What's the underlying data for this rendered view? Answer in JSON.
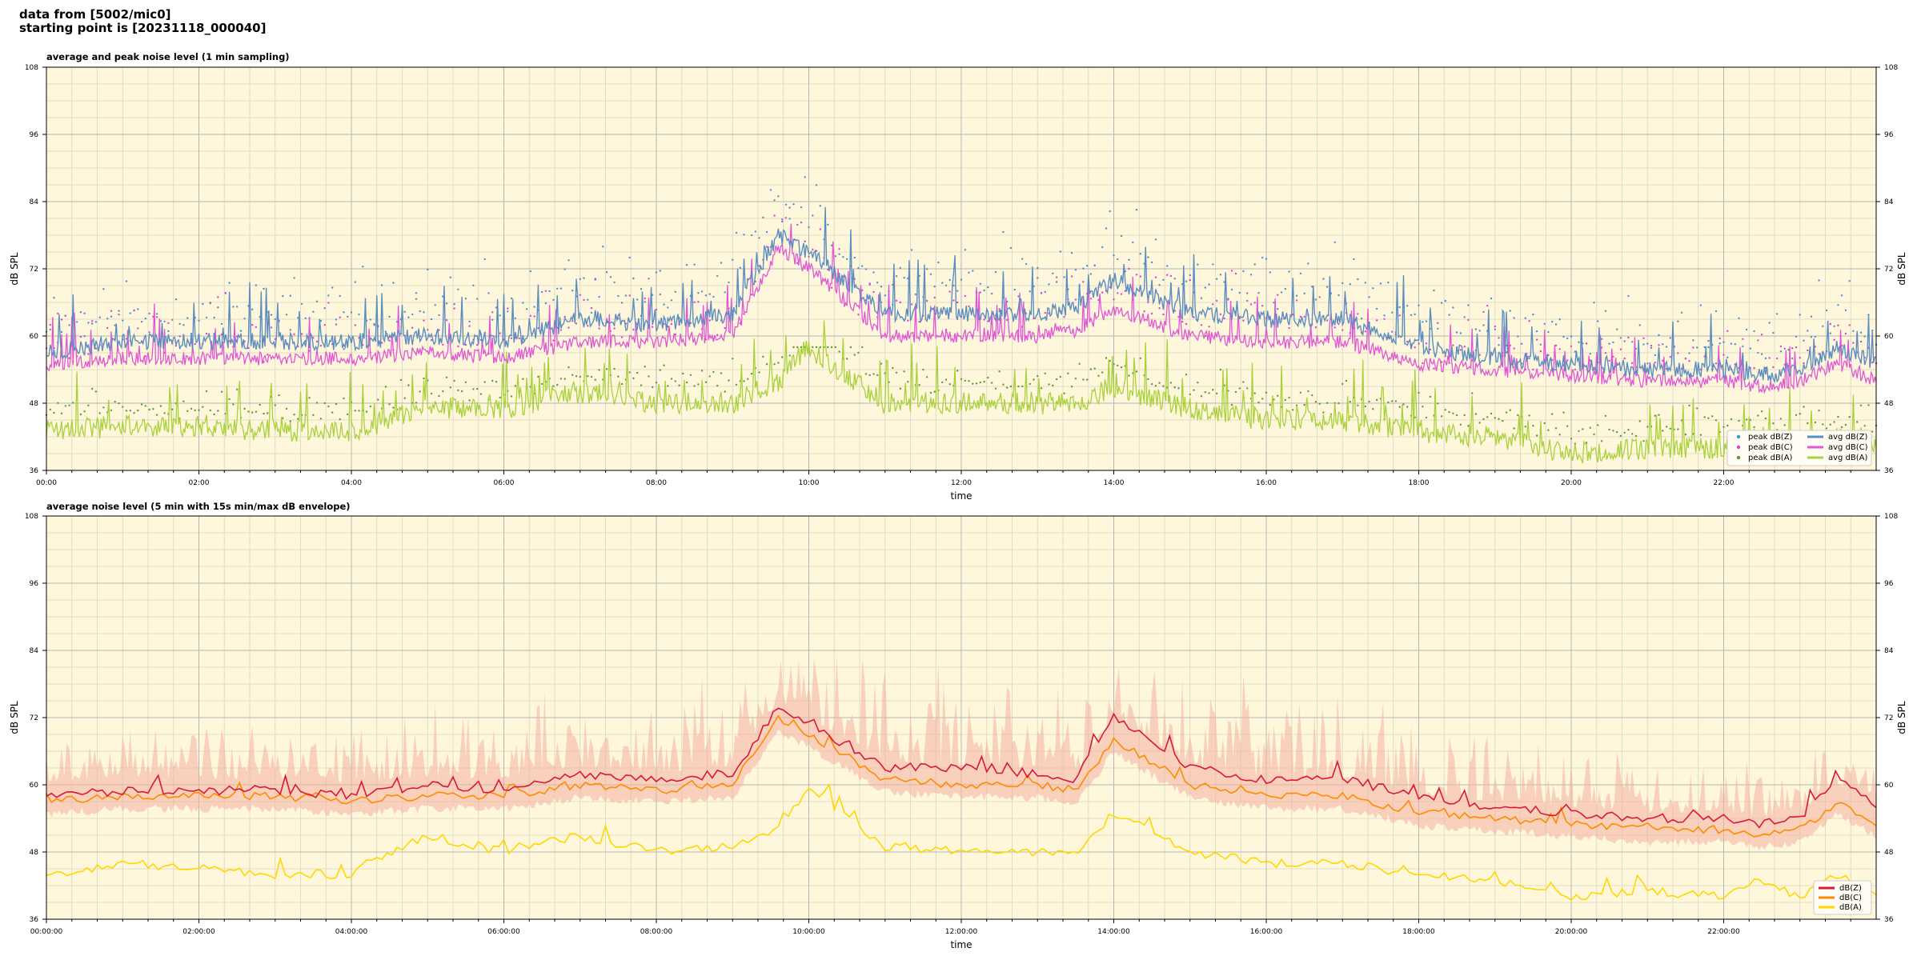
{
  "header": {
    "line1": "data from [5002/mic0]",
    "line2": "starting point is [20231118_000040]"
  },
  "colors": {
    "background": "#fff7db",
    "grid_major": "#b5b5b5",
    "grid_minor": "#e2dcc4",
    "z": "#5b8dc0",
    "c": "#e056d6",
    "a": "#a8d13c",
    "peak_z": "#4a8fd4",
    "peak_c": "#e040d0",
    "peak_a": "#5a9a3a",
    "z2": "#d7193a",
    "c2": "#ff8c00",
    "a2": "#ffd700",
    "envelope": "#f3b0a0"
  },
  "chart_data": [
    {
      "type": "line",
      "title": "average and peak noise level (1 min sampling)",
      "xlabel": "time",
      "ylabel": "dB SPL",
      "xlim_hours": [
        0,
        24
      ],
      "ylim": [
        36,
        108
      ],
      "yticks": [
        36,
        48,
        60,
        72,
        84,
        96,
        108
      ],
      "xtick_labels": [
        "00:00",
        "02:00",
        "04:00",
        "06:00",
        "08:00",
        "10:00",
        "12:00",
        "14:00",
        "16:00",
        "18:00",
        "20:00",
        "22:00"
      ],
      "grid": true,
      "legend_position": "bottom-right",
      "legend": {
        "scatter": [
          "peak dB(Z)",
          "peak dB(C)",
          "peak dB(A)"
        ],
        "lines": [
          "avg dB(Z)",
          "avg dB(C)",
          "avg dB(A)"
        ]
      },
      "series": [
        {
          "name": "avg dB(Z)",
          "kind": "line",
          "x_hours": [
            0,
            1,
            2,
            3,
            4,
            5,
            6,
            7,
            8,
            9,
            9.6,
            10,
            11,
            12,
            13,
            13.5,
            14,
            15,
            16,
            17,
            18,
            19,
            20,
            21,
            22,
            22.5,
            23,
            23.5,
            24
          ],
          "values": [
            57,
            59,
            59,
            59,
            59,
            60,
            59,
            63,
            62,
            64,
            78,
            75,
            64,
            64,
            64,
            65,
            70,
            64,
            63,
            63,
            58,
            56,
            55,
            54,
            54,
            53,
            54,
            58,
            55
          ]
        },
        {
          "name": "avg dB(C)",
          "kind": "line",
          "x_hours": [
            0,
            1,
            2,
            3,
            4,
            5,
            6,
            7,
            8,
            9,
            9.6,
            10,
            11,
            12,
            13,
            13.5,
            14,
            15,
            16,
            17,
            18,
            19,
            20,
            21,
            22,
            22.5,
            23,
            23.5,
            24
          ],
          "values": [
            55,
            56,
            56,
            56,
            56,
            57,
            56,
            59,
            59,
            60,
            76,
            72,
            60,
            60,
            60,
            61,
            65,
            60,
            59,
            59,
            55,
            54,
            53,
            52,
            52,
            51,
            52,
            55,
            52
          ]
        },
        {
          "name": "avg dB(A)",
          "kind": "line",
          "x_hours": [
            0,
            1,
            2,
            3,
            4,
            5,
            6,
            7,
            8,
            9,
            9.6,
            10,
            11,
            12,
            13,
            13.5,
            14,
            15,
            16,
            17,
            18,
            19,
            20,
            21,
            22,
            22.5,
            23,
            23.5,
            24
          ],
          "values": [
            43,
            44,
            44,
            43,
            43,
            47,
            47,
            50,
            48,
            48,
            52,
            58,
            48,
            48,
            48,
            48,
            51,
            47,
            45,
            45,
            43,
            42,
            39,
            40,
            40,
            42,
            40,
            42,
            40
          ]
        },
        {
          "name": "peak dB(Z)",
          "kind": "scatter",
          "min": 56,
          "max": 96
        },
        {
          "name": "peak dB(C)",
          "kind": "scatter",
          "min": 54,
          "max": 88
        },
        {
          "name": "peak dB(A)",
          "kind": "scatter",
          "min": 40,
          "max": 58
        }
      ]
    },
    {
      "type": "line",
      "title": "average noise level (5 min with 15s min/max dB envelope)",
      "xlabel": "time",
      "ylabel": "dB SPL",
      "xlim_hours": [
        0,
        24
      ],
      "ylim": [
        36,
        108
      ],
      "yticks": [
        36,
        48,
        60,
        72,
        84,
        96,
        108
      ],
      "xtick_labels": [
        "00:00:00",
        "02:00:00",
        "04:00:00",
        "06:00:00",
        "08:00:00",
        "10:00:00",
        "12:00:00",
        "14:00:00",
        "16:00:00",
        "18:00:00",
        "20:00:00",
        "22:00:00"
      ],
      "grid": true,
      "legend_position": "bottom-right",
      "legend": {
        "lines": [
          "dB(Z)",
          "dB(C)",
          "dB(A)"
        ]
      },
      "series": [
        {
          "name": "dB(Z)",
          "x_hours": [
            0,
            1,
            2,
            3,
            4,
            5,
            6,
            7,
            8,
            9,
            9.6,
            10,
            11,
            12,
            13,
            13.5,
            14,
            15,
            16,
            17,
            18,
            19,
            20,
            21,
            22,
            22.5,
            23,
            23.5,
            24
          ],
          "values": [
            58,
            59,
            59,
            59,
            58,
            60,
            59,
            62,
            61,
            62,
            74,
            71,
            63,
            63,
            62,
            61,
            72,
            63,
            61,
            61,
            58,
            56,
            55,
            54,
            54,
            53,
            54,
            62,
            56
          ]
        },
        {
          "name": "dB(C)",
          "x_hours": [
            0,
            1,
            2,
            3,
            4,
            5,
            6,
            7,
            8,
            9,
            9.6,
            10,
            11,
            12,
            13,
            13.5,
            14,
            15,
            16,
            17,
            18,
            19,
            20,
            21,
            22,
            22.5,
            23,
            23.5,
            24
          ],
          "values": [
            57,
            58,
            58,
            58,
            57,
            58,
            58,
            60,
            59,
            60,
            72,
            69,
            61,
            60,
            60,
            59,
            68,
            60,
            58,
            58,
            55,
            54,
            53,
            52,
            52,
            51,
            52,
            57,
            53
          ]
        },
        {
          "name": "dB(A)",
          "x_hours": [
            0,
            1,
            2,
            3,
            4,
            5,
            6,
            7,
            8,
            9,
            9.6,
            10,
            11,
            12,
            13,
            13.5,
            14,
            15,
            16,
            17,
            18,
            19,
            20,
            21,
            22,
            22.5,
            23,
            23.5,
            24
          ],
          "values": [
            44,
            46,
            45,
            44,
            44,
            51,
            48,
            51,
            48,
            49,
            52,
            59,
            49,
            48,
            48,
            48,
            55,
            48,
            46,
            46,
            44,
            43,
            40,
            41,
            40,
            43,
            40,
            44,
            40
          ]
        },
        {
          "name": "envelope max",
          "x_hours": [
            0,
            2,
            4,
            6,
            7,
            8,
            9,
            9.6,
            10,
            12,
            13.5,
            14,
            15,
            16,
            17,
            18,
            20,
            22,
            23.5,
            24
          ],
          "values": [
            68,
            72,
            72,
            74,
            78,
            76,
            80,
            84,
            86,
            80,
            82,
            84,
            86,
            80,
            78,
            72,
            66,
            62,
            70,
            62
          ]
        }
      ]
    }
  ]
}
